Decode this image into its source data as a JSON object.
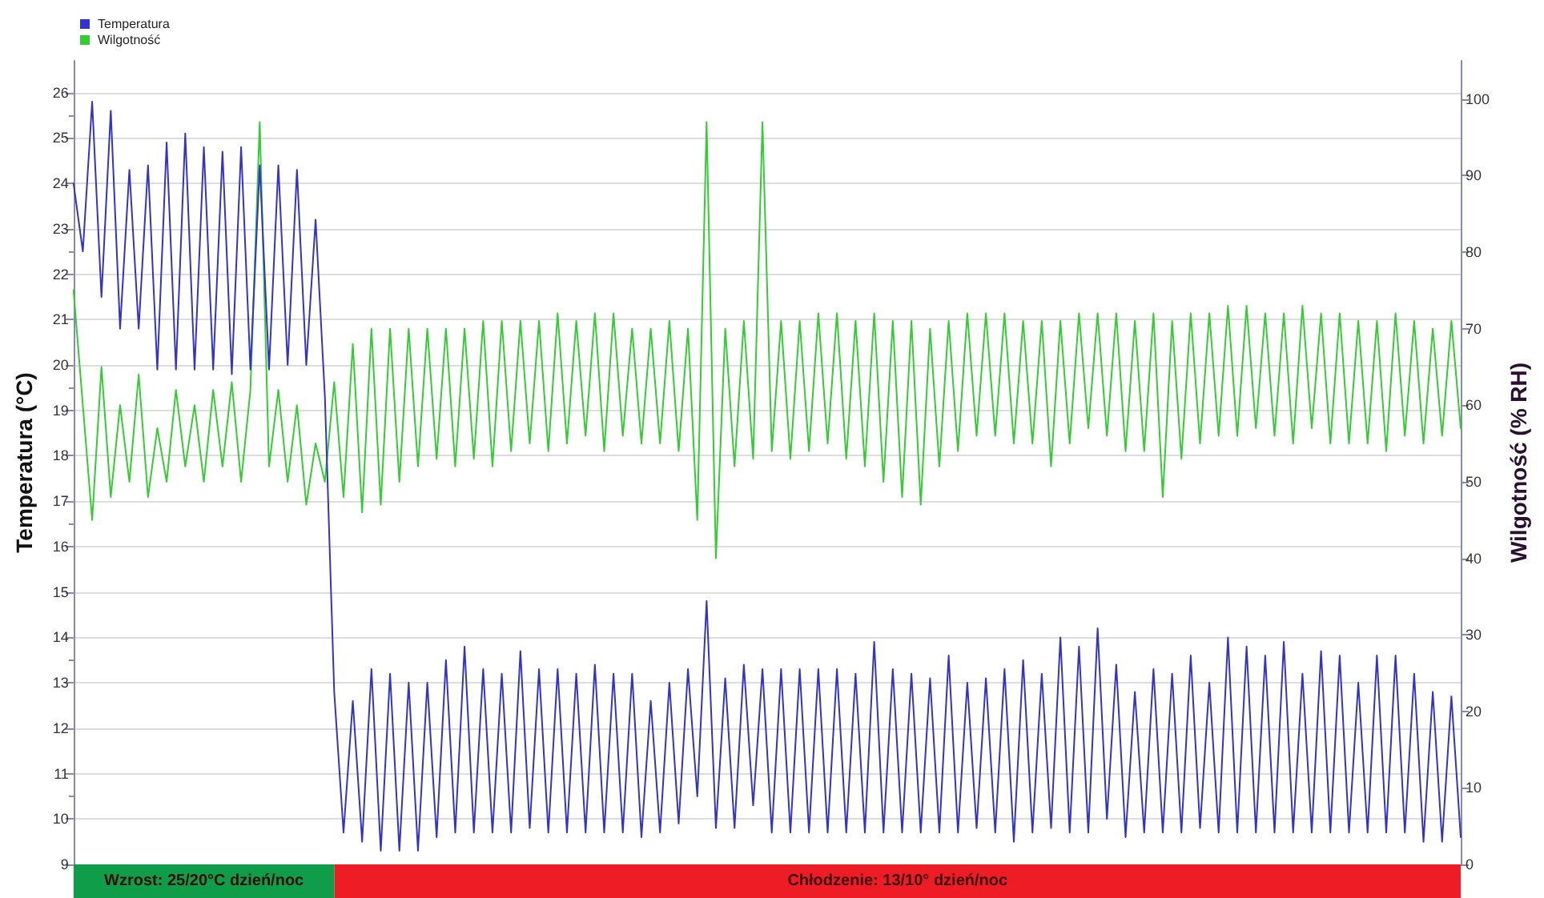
{
  "chart_data": {
    "type": "line",
    "ylabel": "Temperatura (°C)",
    "y2label": "Wilgotność (% RH)",
    "categories": [
      null,
      null,
      null,
      null,
      null,
      null,
      null,
      null,
      null,
      null,
      null,
      null,
      null,
      null,
      null,
      null,
      null,
      null,
      null,
      null,
      null,
      null,
      null,
      null,
      null,
      null,
      null,
      null,
      null,
      null,
      null,
      null,
      null,
      null,
      null,
      null,
      null,
      null,
      null,
      null,
      null,
      null,
      null,
      null,
      null,
      null,
      null,
      null,
      null,
      null,
      null,
      null,
      null,
      null,
      null,
      null,
      null,
      null,
      null,
      null,
      null,
      null,
      null,
      null,
      null,
      null,
      null,
      null,
      null,
      null,
      null,
      null,
      null,
      null,
      null,
      null,
      null,
      null,
      null,
      null,
      null,
      null,
      null,
      null,
      null,
      null,
      null,
      null,
      null,
      null,
      null,
      null,
      null,
      null,
      null,
      null,
      null,
      null,
      null,
      null,
      null,
      null,
      null,
      null,
      null,
      null,
      null,
      null,
      null,
      null,
      null,
      null,
      null,
      null,
      null,
      null,
      null,
      null,
      null,
      null,
      null,
      null,
      null,
      null,
      null,
      null,
      null,
      null,
      null,
      null,
      null,
      null,
      null,
      null,
      null,
      null,
      null,
      null,
      null,
      null,
      null,
      null,
      null,
      null,
      null,
      null,
      null,
      null,
      null,
      null
    ],
    "series": [
      {
        "name": "Temperatura",
        "color": "#3333cc",
        "values": [
          24.0,
          22.5,
          25.8,
          21.5,
          25.6,
          20.8,
          24.3,
          20.8,
          24.4,
          19.9,
          24.9,
          19.9,
          25.1,
          19.9,
          24.8,
          19.9,
          24.7,
          19.8,
          24.8,
          19.9,
          24.4,
          19.9,
          24.4,
          20.0,
          24.3,
          20.0,
          23.2,
          19.3,
          12.8,
          9.7,
          12.6,
          9.5,
          13.3,
          9.3,
          13.2,
          9.3,
          13.0,
          9.3,
          13.0,
          9.6,
          13.5,
          9.7,
          13.8,
          9.7,
          13.3,
          9.7,
          13.2,
          9.7,
          13.7,
          9.8,
          13.3,
          9.7,
          13.3,
          9.7,
          13.2,
          9.7,
          13.4,
          9.7,
          13.2,
          9.7,
          13.2,
          9.6,
          12.6,
          9.7,
          13.0,
          9.9,
          13.3,
          10.5,
          14.8,
          9.8,
          13.1,
          9.8,
          13.4,
          10.3,
          13.3,
          9.7,
          13.3,
          9.7,
          13.3,
          9.7,
          13.3,
          9.7,
          13.3,
          9.7,
          13.2,
          9.7,
          13.9,
          9.7,
          13.3,
          9.7,
          13.2,
          9.7,
          13.1,
          9.7,
          13.6,
          9.7,
          13.0,
          9.8,
          13.1,
          9.7,
          13.3,
          9.5,
          13.5,
          9.7,
          13.2,
          9.8,
          14.0,
          9.7,
          13.8,
          9.7,
          14.2,
          10.0,
          13.4,
          9.6,
          12.8,
          9.7,
          13.3,
          9.7,
          13.2,
          9.7,
          13.6,
          9.8,
          13.0,
          9.7,
          14.0,
          9.7,
          13.8,
          9.7,
          13.6,
          9.7,
          13.9,
          9.7,
          13.2,
          9.7,
          13.7,
          9.7,
          13.6,
          9.7,
          13.0,
          9.7,
          13.6,
          9.7,
          13.6,
          9.7,
          13.2,
          9.5,
          12.8,
          9.5,
          12.7,
          9.6
        ]
      },
      {
        "name": "Wilgotność",
        "color": "#33cc33",
        "axis": "y2",
        "values": [
          75,
          60,
          45,
          65,
          48,
          60,
          50,
          64,
          48,
          57,
          50,
          62,
          52,
          60,
          50,
          62,
          52,
          63,
          50,
          62,
          97,
          52,
          62,
          50,
          60,
          47,
          55,
          50,
          63,
          48,
          68,
          46,
          70,
          47,
          70,
          50,
          70,
          52,
          70,
          53,
          70,
          52,
          70,
          53,
          71,
          52,
          71,
          54,
          71,
          55,
          71,
          54,
          72,
          55,
          71,
          56,
          72,
          54,
          72,
          56,
          70,
          55,
          70,
          55,
          71,
          54,
          70,
          45,
          97,
          40,
          70,
          52,
          71,
          53,
          97,
          54,
          71,
          53,
          71,
          54,
          72,
          55,
          72,
          53,
          71,
          52,
          72,
          50,
          71,
          48,
          71,
          47,
          70,
          52,
          71,
          54,
          72,
          56,
          72,
          56,
          72,
          55,
          71,
          55,
          71,
          52,
          71,
          55,
          72,
          57,
          72,
          56,
          72,
          54,
          71,
          54,
          72,
          48,
          71,
          53,
          72,
          55,
          72,
          56,
          73,
          56,
          73,
          57,
          72,
          56,
          72,
          55,
          73,
          57,
          72,
          55,
          72,
          55,
          71,
          55,
          71,
          54,
          72,
          56,
          71,
          55,
          70,
          56,
          71,
          57
        ]
      }
    ],
    "ylim": [
      9,
      26.7
    ],
    "yticks": [
      9,
      10,
      11,
      12,
      13,
      14,
      15,
      16,
      17,
      18,
      19,
      20,
      21,
      22,
      23,
      24,
      25,
      26
    ],
    "y2lim": [
      0,
      105
    ],
    "y2ticks": [
      0,
      10,
      20,
      30,
      40,
      50,
      60,
      70,
      80,
      90,
      100
    ],
    "annotations": [
      "Wzrost: 25/20°C dzień/noc",
      "Chłodzenie: 13/10° dzień/noc"
    ],
    "grid": "y",
    "legend": "top left",
    "line_style": "solid"
  }
}
